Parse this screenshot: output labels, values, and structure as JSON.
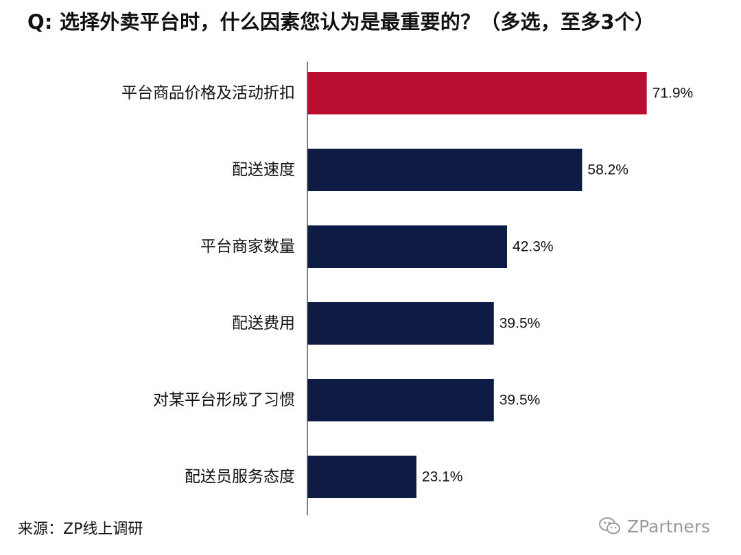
{
  "title": "Q: 选择外卖平台时，什么因素您认为是最重要的？（多选，至多3个）",
  "source": "来源：ZP线上调研",
  "watermark": {
    "text": "ZPartners",
    "icon": "wechat-icon"
  },
  "colors": {
    "highlight": "#BA0C2F",
    "bar": "#0D1B45",
    "axis": "#555555",
    "text": "#111111"
  },
  "chart_data": {
    "type": "bar",
    "orientation": "horizontal",
    "categories": [
      "平台商品价格及活动折扣",
      "配送速度",
      "平台商家数量",
      "配送费用",
      "对某平台形成了习惯",
      "配送员服务态度"
    ],
    "values": [
      71.9,
      58.2,
      42.3,
      39.5,
      39.5,
      23.1
    ],
    "value_labels": [
      "71.9%",
      "58.2%",
      "42.3%",
      "39.5%",
      "39.5%",
      "23.1%"
    ],
    "highlight_index": 0,
    "xlim": [
      0,
      100
    ],
    "title": "Q: 选择外卖平台时，什么因素您认为是最重要的？（多选，至多3个）",
    "xlabel": "",
    "ylabel": "",
    "grid": false,
    "legend": "none"
  }
}
